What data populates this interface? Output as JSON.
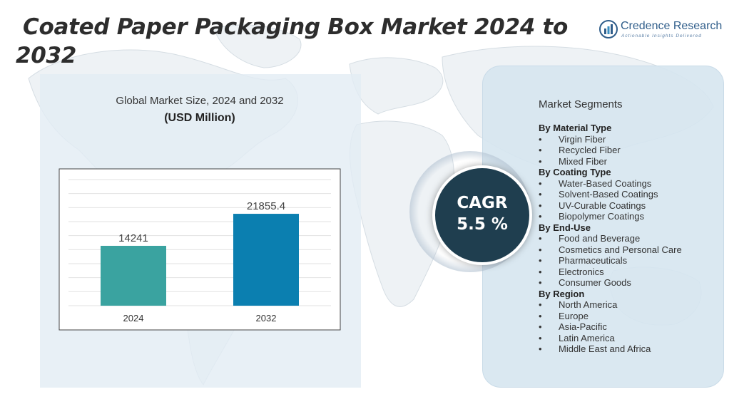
{
  "title": {
    "line1": "Coated Paper Packaging Box Market  2024 to",
    "line2": "2032"
  },
  "logo": {
    "name": "Credence Research",
    "tagline": "Actionable Insights Delivered"
  },
  "chart_data": {
    "type": "bar",
    "title": "Global Market Size, 2024 and 2032",
    "ylabel": "(USD Million)",
    "categories": [
      "2024",
      "2032"
    ],
    "values": [
      14241,
      21855.4
    ],
    "value_labels": [
      "14241",
      "21855.4"
    ],
    "colors": [
      "#3aa3a0",
      "#0b7fb0"
    ],
    "ylim": [
      0,
      30000
    ],
    "grid": true
  },
  "cagr": {
    "label": "CAGR",
    "value": "5.5 %"
  },
  "segments": {
    "title": "Market Segments",
    "groups": [
      {
        "name": "By Material Type",
        "items": [
          "Virgin Fiber",
          "Recycled Fiber",
          "Mixed Fiber"
        ]
      },
      {
        "name": "By Coating Type",
        "items": [
          "Water-Based Coatings",
          "Solvent-Based Coatings",
          "UV-Curable Coatings",
          "Biopolymer Coatings"
        ]
      },
      {
        "name": "By End-Use",
        "items": [
          "Food and Beverage",
          "Cosmetics and Personal Care",
          "Pharmaceuticals",
          "Electronics",
          "Consumer Goods"
        ]
      },
      {
        "name": "By Region",
        "items": [
          "North America",
          "Europe",
          "Asia-Pacific",
          "Latin America",
          "Middle East and Africa"
        ]
      }
    ]
  }
}
